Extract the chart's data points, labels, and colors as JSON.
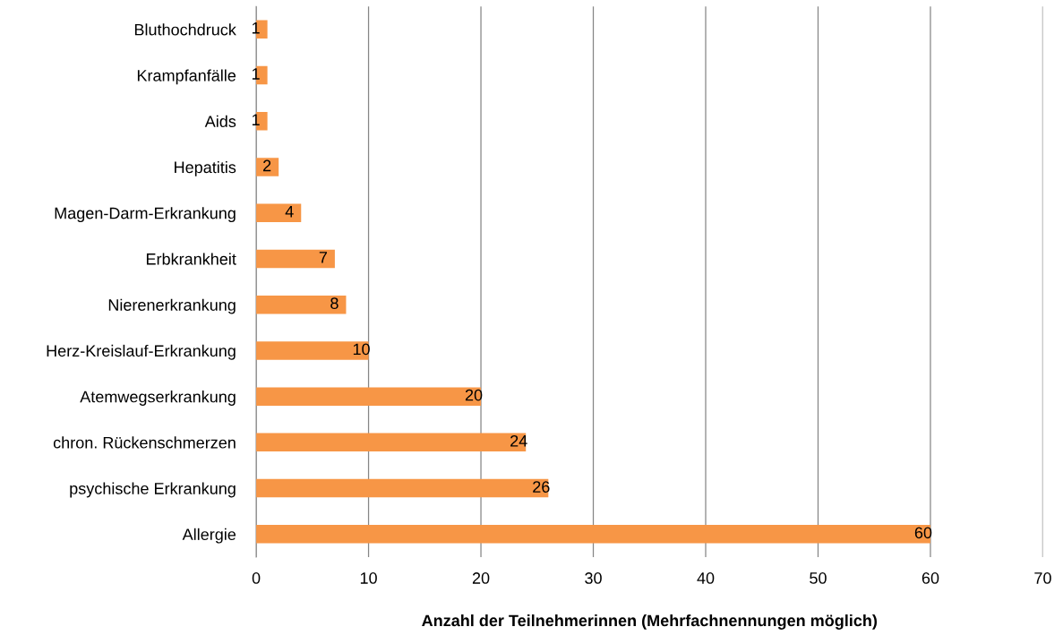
{
  "chart_data": {
    "type": "bar",
    "orientation": "horizontal",
    "xlabel": "Anzahl der Teilnehmerinnen (Mehrfachnennungen möglich)",
    "categories": [
      "Bluthochdruck",
      "Krampfanfälle",
      "Aids",
      "Hepatitis",
      "Magen-Darm-Erkrankung",
      "Erbkrankheit",
      "Nierenerkrankung",
      "Herz-Kreislauf-Erkrankung",
      "Atemwegserkrankung",
      "chron. Rückenschmerzen",
      "psychische Erkrankung",
      "Allergie"
    ],
    "values": [
      1,
      1,
      1,
      2,
      4,
      7,
      8,
      10,
      20,
      24,
      26,
      60
    ],
    "color": "#f79646",
    "xlim": [
      0,
      70
    ],
    "xticks": [
      0,
      10,
      20,
      30,
      40,
      50,
      60,
      70
    ],
    "grid": "x",
    "data_labels": true
  }
}
